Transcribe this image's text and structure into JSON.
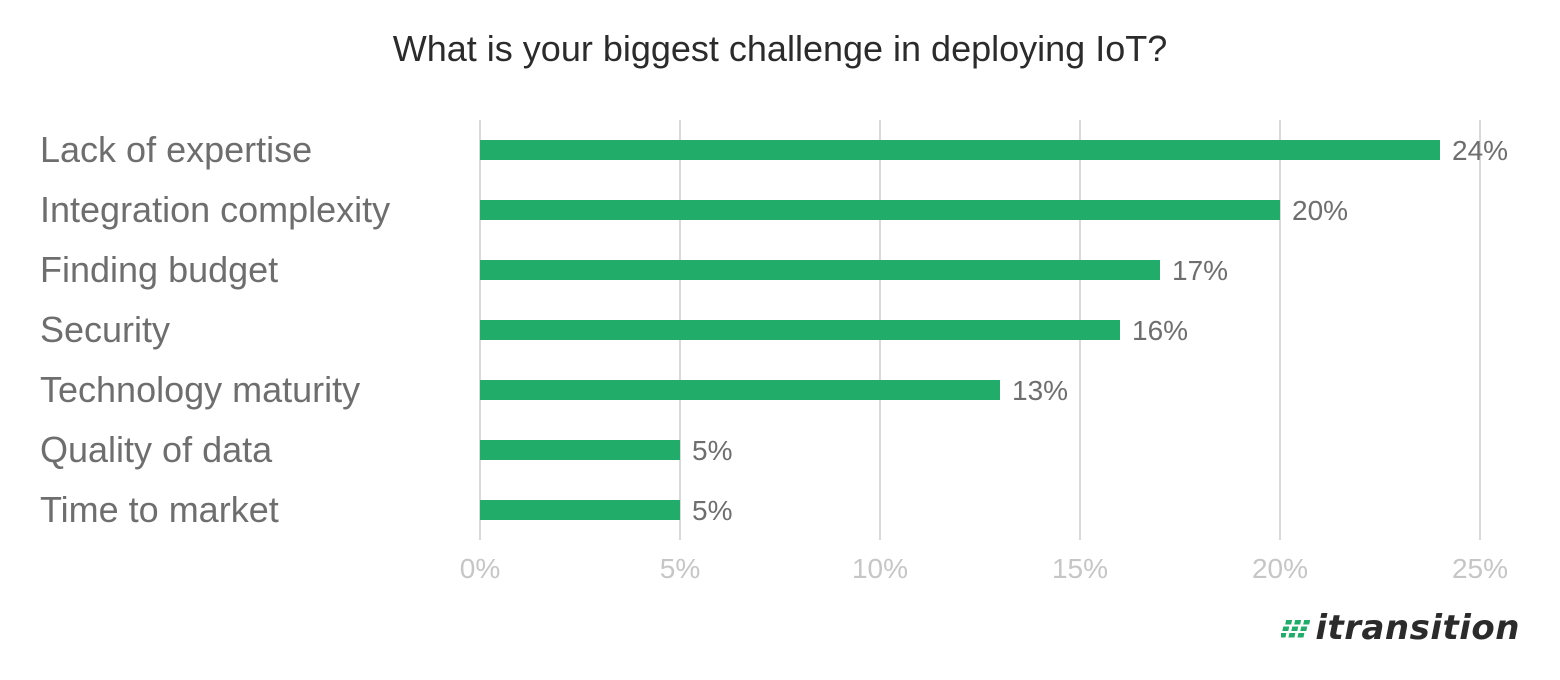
{
  "chart_data": {
    "type": "bar",
    "orientation": "horizontal",
    "title": "What is your biggest challenge in deploying IoT?",
    "categories": [
      "Lack of expertise",
      "Integration complexity",
      "Finding budget",
      "Security",
      "Technology maturity",
      "Quality of data",
      "Time to market"
    ],
    "values": [
      24,
      20,
      17,
      16,
      13,
      5,
      5
    ],
    "value_labels": [
      "24%",
      "20%",
      "17%",
      "16%",
      "13%",
      "5%",
      "5%"
    ],
    "xlim": [
      0,
      25
    ],
    "x_ticks": [
      0,
      5,
      10,
      15,
      20,
      25
    ],
    "x_tick_labels": [
      "0%",
      "5%",
      "10%",
      "15%",
      "20%",
      "25%"
    ],
    "grid": true,
    "bar_color": "#21ad69",
    "grid_color": "#d9d9d9"
  },
  "brand": {
    "logo_text": "itransition",
    "logo_mark_color": "#21ad69"
  }
}
